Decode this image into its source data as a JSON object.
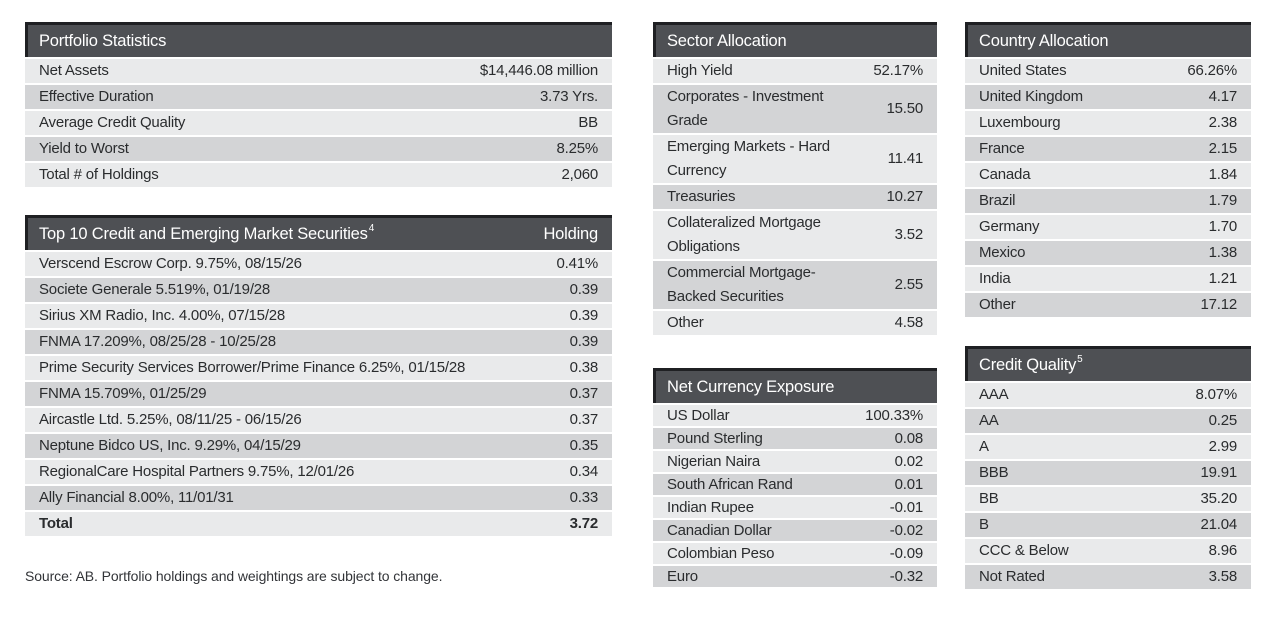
{
  "colors": {
    "header_bg": "#4e5054",
    "header_accent": "#1f2023",
    "header_text": "#ffffff",
    "row_light": "#e9eaeb",
    "row_dark": "#d3d4d6",
    "body_text": "#2a2c2e"
  },
  "tables": {
    "portfolio_statistics": {
      "title": "Portfolio Statistics",
      "rows": [
        {
          "label": "Net Assets",
          "value": "$14,446.08 million"
        },
        {
          "label": "Effective Duration",
          "value": "3.73 Yrs."
        },
        {
          "label": "Average Credit Quality",
          "value": "BB"
        },
        {
          "label": "Yield to Worst",
          "value": "8.25%"
        },
        {
          "label": "Total # of Holdings",
          "value": "2,060"
        }
      ]
    },
    "top_securities": {
      "title": "Top 10 Credit and Emerging Market Securities",
      "title_superscript": "4",
      "value_header": "Holding",
      "rows": [
        {
          "label": "Verscend Escrow Corp. 9.75%, 08/15/26",
          "value": "0.41%"
        },
        {
          "label": "Societe Generale 5.519%, 01/19/28",
          "value": "0.39"
        },
        {
          "label": "Sirius XM Radio, Inc. 4.00%, 07/15/28",
          "value": "0.39"
        },
        {
          "label": "FNMA 17.209%, 08/25/28 - 10/25/28",
          "value": "0.39"
        },
        {
          "label": "Prime Security Services Borrower/Prime Finance 6.25%, 01/15/28",
          "value": "0.38"
        },
        {
          "label": "FNMA 15.709%, 01/25/29",
          "value": "0.37"
        },
        {
          "label": "Aircastle Ltd. 5.25%, 08/11/25 - 06/15/26",
          "value": "0.37"
        },
        {
          "label": "Neptune Bidco US, Inc. 9.29%, 04/15/29",
          "value": "0.35"
        },
        {
          "label": "RegionalCare Hospital Partners 9.75%, 12/01/26",
          "value": "0.34"
        },
        {
          "label": "Ally Financial 8.00%, 11/01/31",
          "value": "0.33"
        },
        {
          "label": "Total",
          "value": "3.72",
          "bold": true
        }
      ]
    },
    "sector_allocation": {
      "title": "Sector Allocation",
      "rows": [
        {
          "label": "High Yield",
          "value": "52.17%"
        },
        {
          "label": "Corporates - Investment Grade",
          "value": "15.50"
        },
        {
          "label": "Emerging Markets - Hard Currency",
          "value": "11.41"
        },
        {
          "label": "Treasuries",
          "value": "10.27"
        },
        {
          "label": "Collateralized Mortgage Obligations",
          "value": "3.52"
        },
        {
          "label": "Commercial Mortgage-Backed Securities",
          "value": "2.55"
        },
        {
          "label": "Other",
          "value": "4.58"
        }
      ]
    },
    "net_currency_exposure": {
      "title": "Net Currency Exposure",
      "rows": [
        {
          "label": "US Dollar",
          "value": "100.33%"
        },
        {
          "label": "Pound Sterling",
          "value": "0.08"
        },
        {
          "label": "Nigerian Naira",
          "value": "0.02"
        },
        {
          "label": "South African Rand",
          "value": "0.01"
        },
        {
          "label": "Indian Rupee",
          "value": "-0.01"
        },
        {
          "label": "Canadian Dollar",
          "value": "-0.02"
        },
        {
          "label": "Colombian Peso",
          "value": "-0.09"
        },
        {
          "label": "Euro",
          "value": "-0.32"
        }
      ]
    },
    "country_allocation": {
      "title": "Country Allocation",
      "rows": [
        {
          "label": "United States",
          "value": "66.26%"
        },
        {
          "label": "United Kingdom",
          "value": "4.17"
        },
        {
          "label": "Luxembourg",
          "value": "2.38"
        },
        {
          "label": "France",
          "value": "2.15"
        },
        {
          "label": "Canada",
          "value": "1.84"
        },
        {
          "label": "Brazil",
          "value": "1.79"
        },
        {
          "label": "Germany",
          "value": "1.70"
        },
        {
          "label": "Mexico",
          "value": "1.38"
        },
        {
          "label": "India",
          "value": "1.21"
        },
        {
          "label": "Other",
          "value": "17.12"
        }
      ]
    },
    "credit_quality": {
      "title": "Credit Quality",
      "title_superscript": "5",
      "rows": [
        {
          "label": "AAA",
          "value": "8.07%"
        },
        {
          "label": "AA",
          "value": "0.25"
        },
        {
          "label": "A",
          "value": "2.99"
        },
        {
          "label": "BBB",
          "value": "19.91"
        },
        {
          "label": "BB",
          "value": "35.20"
        },
        {
          "label": "B",
          "value": "21.04"
        },
        {
          "label": "CCC & Below",
          "value": "8.96"
        },
        {
          "label": "Not Rated",
          "value": "3.58"
        }
      ]
    }
  },
  "source_note": "Source: AB. Portfolio holdings and weightings are subject to change."
}
